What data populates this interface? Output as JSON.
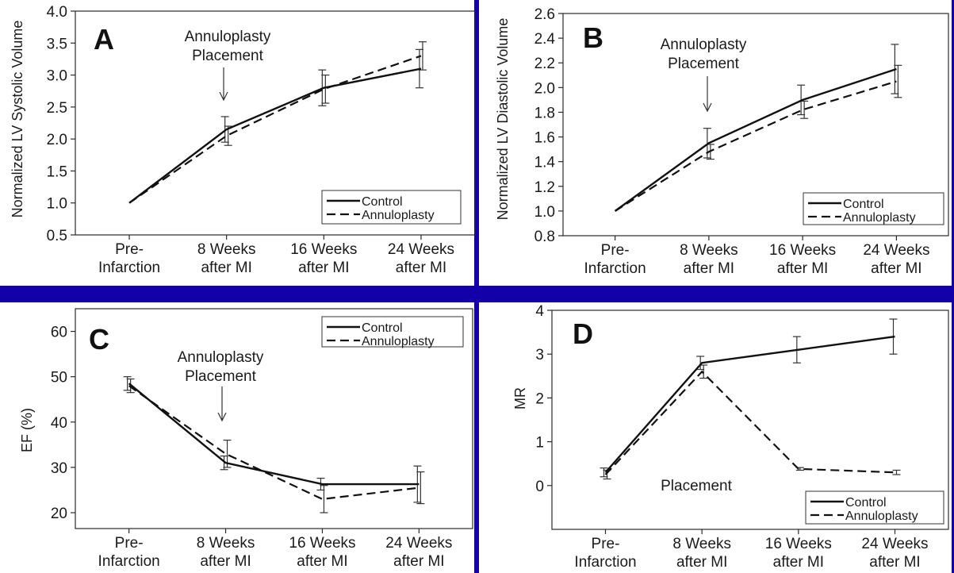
{
  "chart_data": [
    {
      "type": "line",
      "panel_letter": "A",
      "title": "",
      "ylabel": "Normalized LV Systolic Volume",
      "xlabel": "",
      "categories": [
        [
          "Pre-",
          "Infarction"
        ],
        [
          "8 Weeks",
          "after MI"
        ],
        [
          "16 Weeks",
          "after MI"
        ],
        [
          "24 Weeks",
          "after MI"
        ]
      ],
      "ylim": [
        0.5,
        4.0
      ],
      "yticks": [
        "0.5",
        "1.0",
        "1.5",
        "2.0",
        "2.5",
        "3.0",
        "3.5",
        "4.0"
      ],
      "series": [
        {
          "name": "Control",
          "style": "solid",
          "values": [
            1.0,
            2.15,
            2.8,
            3.1
          ],
          "err": [
            0,
            0.2,
            0.28,
            0.3
          ]
        },
        {
          "name": "Annuloplasty",
          "style": "dashed",
          "values": [
            1.0,
            2.05,
            2.78,
            3.3
          ],
          "err": [
            0,
            0.15,
            0.22,
            0.22
          ]
        }
      ],
      "annotation": {
        "lines": [
          "Annuloplasty",
          "Placement"
        ]
      },
      "legend_position": "bottom-right",
      "grid": false
    },
    {
      "type": "line",
      "panel_letter": "B",
      "title": "",
      "ylabel": "Normalized LV Diastolic Volume",
      "xlabel": "",
      "categories": [
        [
          "Pre-",
          "Infarction"
        ],
        [
          "8 Weeks",
          "after MI"
        ],
        [
          "16 Weeks",
          "after MI"
        ],
        [
          "24 Weeks",
          "after MI"
        ]
      ],
      "ylim": [
        0.8,
        2.6
      ],
      "yticks": [
        "0.8",
        "1.0",
        "1.2",
        "1.4",
        "1.6",
        "1.8",
        "2.0",
        "2.2",
        "2.4",
        "2.6"
      ],
      "series": [
        {
          "name": "Control",
          "style": "solid",
          "values": [
            1.0,
            1.55,
            1.9,
            2.15
          ],
          "err": [
            0,
            0.12,
            0.12,
            0.2
          ]
        },
        {
          "name": "Annuloplasty",
          "style": "dashed",
          "values": [
            1.0,
            1.48,
            1.82,
            2.05
          ],
          "err": [
            0,
            0.06,
            0.07,
            0.13
          ]
        }
      ],
      "annotation": {
        "lines": [
          "Annuloplasty",
          "Placement"
        ]
      },
      "legend_position": "bottom-right",
      "grid": false
    },
    {
      "type": "line",
      "panel_letter": "C",
      "title": "",
      "ylabel": "EF (%)",
      "xlabel": "",
      "categories": [
        [
          "Pre-",
          "Infarction"
        ],
        [
          "8 Weeks",
          "after MI"
        ],
        [
          "16 Weeks",
          "after MI"
        ],
        [
          "24 Weeks",
          "after MI"
        ]
      ],
      "ylim": [
        16.5,
        65
      ],
      "yticks": [
        "20",
        "30",
        "40",
        "50",
        "60"
      ],
      "ytick_values": [
        20,
        30,
        40,
        50,
        60
      ],
      "series": [
        {
          "name": "Control",
          "style": "solid",
          "values": [
            48.5,
            31,
            26.3,
            26.3
          ],
          "err": [
            1.5,
            1.5,
            1.3,
            4
          ]
        },
        {
          "name": "Annuloplasty",
          "style": "dashed",
          "values": [
            48,
            33,
            23,
            25.5
          ],
          "err": [
            1.5,
            3,
            3,
            3.5
          ]
        }
      ],
      "annotation": {
        "lines": [
          "Annuloplasty",
          "Placement"
        ]
      },
      "legend_position": "top-right",
      "grid": false
    },
    {
      "type": "line",
      "panel_letter": "D",
      "title": "",
      "ylabel": "MR",
      "xlabel": "",
      "categories": [
        [
          "Pre-",
          "Infarction"
        ],
        [
          "8 Weeks",
          "after MI"
        ],
        [
          "16 Weeks",
          "after MI"
        ],
        [
          "24 Weeks",
          "after MI"
        ]
      ],
      "ylim": [
        -1,
        4
      ],
      "yticks": [
        "0",
        "1",
        "2",
        "3",
        "4"
      ],
      "ytick_values": [
        0,
        1,
        2,
        3,
        4
      ],
      "series": [
        {
          "name": "Control",
          "style": "solid",
          "values": [
            0.3,
            2.8,
            3.1,
            3.4
          ],
          "err": [
            0.1,
            0.15,
            0.3,
            0.4
          ]
        },
        {
          "name": "Annuloplasty",
          "style": "dashed",
          "values": [
            0.25,
            2.6,
            0.38,
            0.3
          ],
          "err": [
            0.1,
            0.15,
            0.03,
            0.05
          ]
        }
      ],
      "annotation": {
        "lines": [
          "Placement"
        ]
      },
      "legend_position": "bottom-right",
      "grid": false
    }
  ]
}
